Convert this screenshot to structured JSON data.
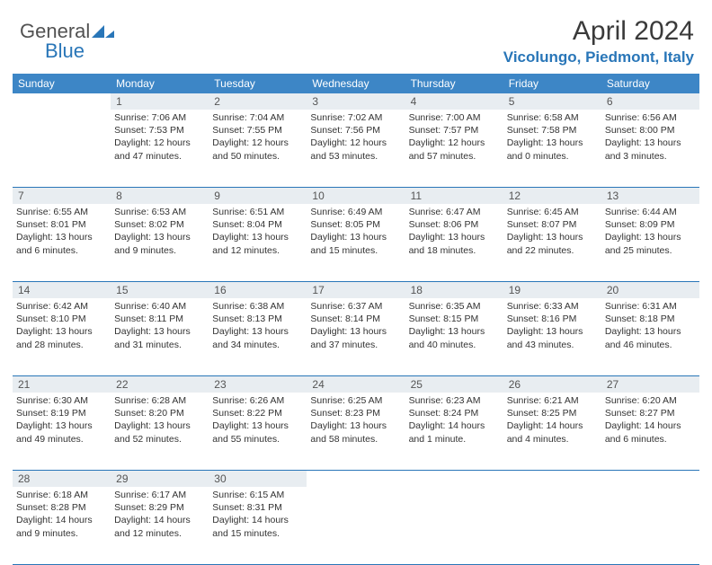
{
  "logo": {
    "text1": "General",
    "text2": "Blue"
  },
  "title": "April 2024",
  "location": "Vicolungo, Piedmont, Italy",
  "dayNames": [
    "Sunday",
    "Monday",
    "Tuesday",
    "Wednesday",
    "Thursday",
    "Friday",
    "Saturday"
  ],
  "colors": {
    "header_bg": "#3d86c6",
    "accent": "#2976b8",
    "daynum_bg": "#e8edf1"
  },
  "weeks": [
    [
      {
        "day": "",
        "sunrise": "",
        "sunset": "",
        "daylight": ""
      },
      {
        "day": "1",
        "sunrise": "Sunrise: 7:06 AM",
        "sunset": "Sunset: 7:53 PM",
        "daylight": "Daylight: 12 hours and 47 minutes."
      },
      {
        "day": "2",
        "sunrise": "Sunrise: 7:04 AM",
        "sunset": "Sunset: 7:55 PM",
        "daylight": "Daylight: 12 hours and 50 minutes."
      },
      {
        "day": "3",
        "sunrise": "Sunrise: 7:02 AM",
        "sunset": "Sunset: 7:56 PM",
        "daylight": "Daylight: 12 hours and 53 minutes."
      },
      {
        "day": "4",
        "sunrise": "Sunrise: 7:00 AM",
        "sunset": "Sunset: 7:57 PM",
        "daylight": "Daylight: 12 hours and 57 minutes."
      },
      {
        "day": "5",
        "sunrise": "Sunrise: 6:58 AM",
        "sunset": "Sunset: 7:58 PM",
        "daylight": "Daylight: 13 hours and 0 minutes."
      },
      {
        "day": "6",
        "sunrise": "Sunrise: 6:56 AM",
        "sunset": "Sunset: 8:00 PM",
        "daylight": "Daylight: 13 hours and 3 minutes."
      }
    ],
    [
      {
        "day": "7",
        "sunrise": "Sunrise: 6:55 AM",
        "sunset": "Sunset: 8:01 PM",
        "daylight": "Daylight: 13 hours and 6 minutes."
      },
      {
        "day": "8",
        "sunrise": "Sunrise: 6:53 AM",
        "sunset": "Sunset: 8:02 PM",
        "daylight": "Daylight: 13 hours and 9 minutes."
      },
      {
        "day": "9",
        "sunrise": "Sunrise: 6:51 AM",
        "sunset": "Sunset: 8:04 PM",
        "daylight": "Daylight: 13 hours and 12 minutes."
      },
      {
        "day": "10",
        "sunrise": "Sunrise: 6:49 AM",
        "sunset": "Sunset: 8:05 PM",
        "daylight": "Daylight: 13 hours and 15 minutes."
      },
      {
        "day": "11",
        "sunrise": "Sunrise: 6:47 AM",
        "sunset": "Sunset: 8:06 PM",
        "daylight": "Daylight: 13 hours and 18 minutes."
      },
      {
        "day": "12",
        "sunrise": "Sunrise: 6:45 AM",
        "sunset": "Sunset: 8:07 PM",
        "daylight": "Daylight: 13 hours and 22 minutes."
      },
      {
        "day": "13",
        "sunrise": "Sunrise: 6:44 AM",
        "sunset": "Sunset: 8:09 PM",
        "daylight": "Daylight: 13 hours and 25 minutes."
      }
    ],
    [
      {
        "day": "14",
        "sunrise": "Sunrise: 6:42 AM",
        "sunset": "Sunset: 8:10 PM",
        "daylight": "Daylight: 13 hours and 28 minutes."
      },
      {
        "day": "15",
        "sunrise": "Sunrise: 6:40 AM",
        "sunset": "Sunset: 8:11 PM",
        "daylight": "Daylight: 13 hours and 31 minutes."
      },
      {
        "day": "16",
        "sunrise": "Sunrise: 6:38 AM",
        "sunset": "Sunset: 8:13 PM",
        "daylight": "Daylight: 13 hours and 34 minutes."
      },
      {
        "day": "17",
        "sunrise": "Sunrise: 6:37 AM",
        "sunset": "Sunset: 8:14 PM",
        "daylight": "Daylight: 13 hours and 37 minutes."
      },
      {
        "day": "18",
        "sunrise": "Sunrise: 6:35 AM",
        "sunset": "Sunset: 8:15 PM",
        "daylight": "Daylight: 13 hours and 40 minutes."
      },
      {
        "day": "19",
        "sunrise": "Sunrise: 6:33 AM",
        "sunset": "Sunset: 8:16 PM",
        "daylight": "Daylight: 13 hours and 43 minutes."
      },
      {
        "day": "20",
        "sunrise": "Sunrise: 6:31 AM",
        "sunset": "Sunset: 8:18 PM",
        "daylight": "Daylight: 13 hours and 46 minutes."
      }
    ],
    [
      {
        "day": "21",
        "sunrise": "Sunrise: 6:30 AM",
        "sunset": "Sunset: 8:19 PM",
        "daylight": "Daylight: 13 hours and 49 minutes."
      },
      {
        "day": "22",
        "sunrise": "Sunrise: 6:28 AM",
        "sunset": "Sunset: 8:20 PM",
        "daylight": "Daylight: 13 hours and 52 minutes."
      },
      {
        "day": "23",
        "sunrise": "Sunrise: 6:26 AM",
        "sunset": "Sunset: 8:22 PM",
        "daylight": "Daylight: 13 hours and 55 minutes."
      },
      {
        "day": "24",
        "sunrise": "Sunrise: 6:25 AM",
        "sunset": "Sunset: 8:23 PM",
        "daylight": "Daylight: 13 hours and 58 minutes."
      },
      {
        "day": "25",
        "sunrise": "Sunrise: 6:23 AM",
        "sunset": "Sunset: 8:24 PM",
        "daylight": "Daylight: 14 hours and 1 minute."
      },
      {
        "day": "26",
        "sunrise": "Sunrise: 6:21 AM",
        "sunset": "Sunset: 8:25 PM",
        "daylight": "Daylight: 14 hours and 4 minutes."
      },
      {
        "day": "27",
        "sunrise": "Sunrise: 6:20 AM",
        "sunset": "Sunset: 8:27 PM",
        "daylight": "Daylight: 14 hours and 6 minutes."
      }
    ],
    [
      {
        "day": "28",
        "sunrise": "Sunrise: 6:18 AM",
        "sunset": "Sunset: 8:28 PM",
        "daylight": "Daylight: 14 hours and 9 minutes."
      },
      {
        "day": "29",
        "sunrise": "Sunrise: 6:17 AM",
        "sunset": "Sunset: 8:29 PM",
        "daylight": "Daylight: 14 hours and 12 minutes."
      },
      {
        "day": "30",
        "sunrise": "Sunrise: 6:15 AM",
        "sunset": "Sunset: 8:31 PM",
        "daylight": "Daylight: 14 hours and 15 minutes."
      },
      {
        "day": "",
        "sunrise": "",
        "sunset": "",
        "daylight": ""
      },
      {
        "day": "",
        "sunrise": "",
        "sunset": "",
        "daylight": ""
      },
      {
        "day": "",
        "sunrise": "",
        "sunset": "",
        "daylight": ""
      },
      {
        "day": "",
        "sunrise": "",
        "sunset": "",
        "daylight": ""
      }
    ]
  ]
}
